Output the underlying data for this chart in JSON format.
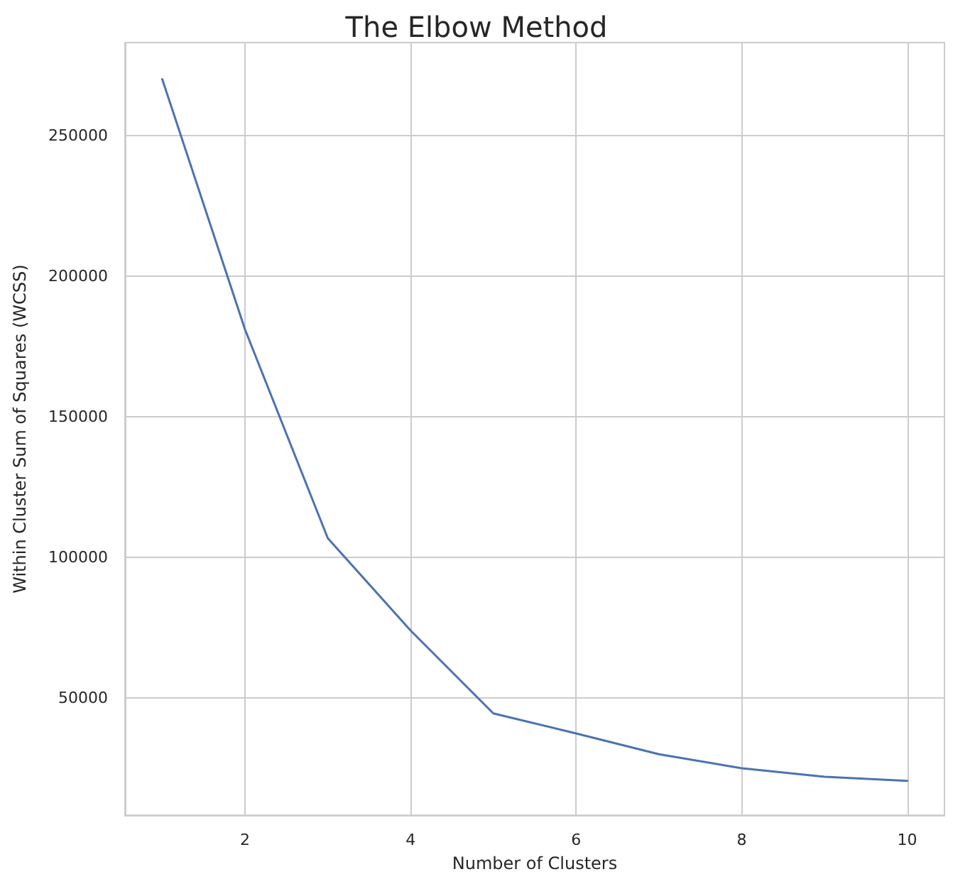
{
  "chart_data": {
    "type": "line",
    "title": "The Elbow Method",
    "xlabel": "Number of Clusters",
    "ylabel": "Within Cluster Sum of Squares (WCSS)",
    "x": [
      1,
      2,
      3,
      4,
      5,
      6,
      7,
      8,
      9,
      10
    ],
    "series": [
      {
        "color": "#4c72b0",
        "values": [
          270000,
          181000,
          106800,
          74000,
          44500,
          37400,
          30000,
          25000,
          22000,
          20500
        ]
      }
    ],
    "xlim": [
      0.55,
      10.45
    ],
    "ylim": [
      8300,
      283000
    ],
    "xticks": [
      2,
      4,
      6,
      8,
      10
    ],
    "yticks": [
      50000,
      100000,
      150000,
      200000,
      250000
    ],
    "grid": true,
    "marker": "none",
    "line_style": "solid"
  }
}
